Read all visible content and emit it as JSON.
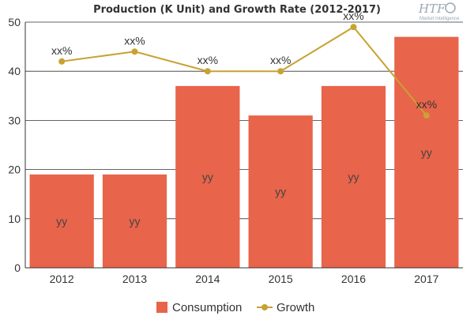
{
  "chart_data": {
    "type": "bar",
    "title": "Production (K Unit) and Growth Rate (2012-2017)",
    "categories": [
      "2012",
      "2013",
      "2014",
      "2015",
      "2016",
      "2017"
    ],
    "ylim": [
      0,
      50
    ],
    "yticks": [
      "0",
      "10",
      "20",
      "30",
      "40",
      "50"
    ],
    "grid": true,
    "legend_position": "bottom-center",
    "series": [
      {
        "name": "Consumption",
        "kind": "bar",
        "color": "#e8644a",
        "values": [
          19,
          19,
          37,
          31,
          37,
          47
        ],
        "data_labels": [
          "yy",
          "yy",
          "yy",
          "yy",
          "yy",
          "yy"
        ]
      },
      {
        "name": "Growth",
        "kind": "line",
        "color": "#c8a232",
        "values": [
          42,
          44,
          40,
          40,
          49,
          31
        ],
        "data_labels": [
          "xx%",
          "xx%",
          "xx%",
          "xx%",
          "xx%",
          "xx%"
        ]
      }
    ]
  },
  "logo": {
    "brand": "HTF",
    "tagline": "Market Intelligence"
  }
}
